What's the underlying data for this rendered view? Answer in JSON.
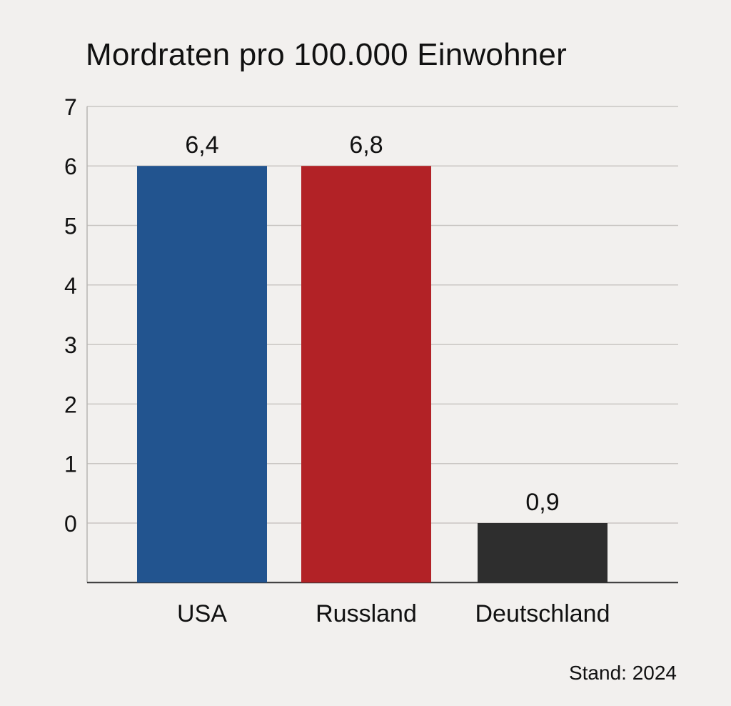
{
  "chart_data": {
    "type": "bar",
    "title": "Mordraten pro 100.000 Einwohner",
    "xlabel": "",
    "ylabel": "",
    "categories": [
      "USA",
      "Russland",
      "Deutschland"
    ],
    "values": [
      6.4,
      6.8,
      0.9
    ],
    "value_labels": [
      "6,4",
      "6,8",
      "0,9"
    ],
    "bar_colors": [
      "#22548f",
      "#b22226",
      "#2e2e2e"
    ],
    "yticks": [
      7,
      6,
      5,
      4,
      3,
      2,
      1,
      0
    ],
    "ylim": [
      -1,
      7
    ],
    "grid": true,
    "note": "Stand: 2024"
  }
}
